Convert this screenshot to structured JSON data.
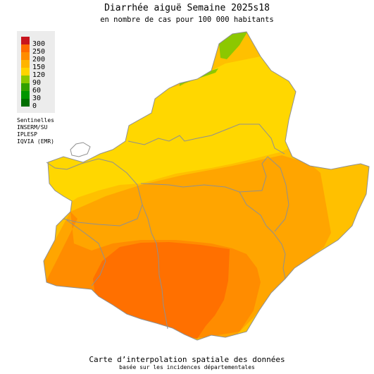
{
  "title": "Diarrhée aiguë Semaine 2025s18",
  "subtitle": "en nombre de cas pour 100 000 habitants",
  "legend": {
    "items": [
      {
        "label": "300",
        "color": "#c8141e"
      },
      {
        "label": "250",
        "color": "#ff6a00"
      },
      {
        "label": "200",
        "color": "#ff8c00"
      },
      {
        "label": "150",
        "color": "#ffb400"
      },
      {
        "label": "120",
        "color": "#ffd400"
      },
      {
        "label": "90",
        "color": "#8cc800"
      },
      {
        "label": "60",
        "color": "#32a000"
      },
      {
        "label": "30",
        "color": "#009600"
      },
      {
        "label": "0",
        "color": "#006e00"
      }
    ]
  },
  "sources": [
    "Sentinelles",
    "INSERM/SU",
    "IPLESP",
    "IQVIA (EMR)"
  ],
  "footer": {
    "line1": "Carte d’interpolation spatiale des données",
    "line2": "basée sur les incidences départementales"
  },
  "map_colors": {
    "green": "#8cc800",
    "yellow": "#ffd700",
    "light_orange": "#ffc000",
    "orange": "#ffa500",
    "dark_orange": "#ff8c00",
    "red_orange": "#ff7000",
    "border": "#909090"
  }
}
